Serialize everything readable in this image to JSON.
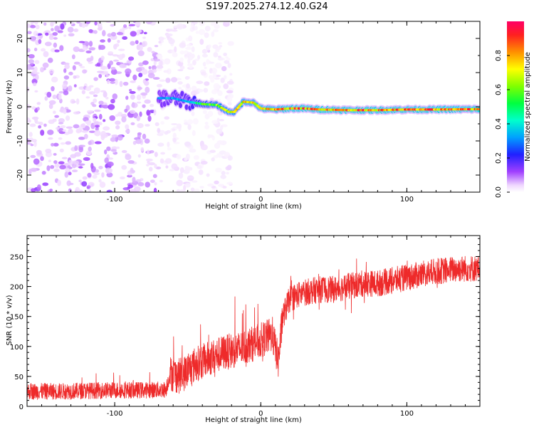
{
  "title": "S197.2025.274.12.40.G24",
  "colors": {
    "background": "#ffffff",
    "snr_line": "#ee2a2a",
    "axis": "#000000"
  },
  "chart_data": [
    {
      "type": "heatmap",
      "xlabel": "Height of straight line (km)",
      "ylabel": "Frequency (Hz)",
      "xlim": [
        -160,
        150
      ],
      "ylim": [
        -25,
        25
      ],
      "xticks": [
        -100,
        0,
        100
      ],
      "xtick_labels": [
        "-100",
        "0",
        "100"
      ],
      "yticks": [
        -20,
        -10,
        0,
        10,
        20
      ],
      "ytick_labels": [
        "-20",
        "-10",
        "0",
        "10",
        "20"
      ],
      "colorbar": {
        "label": "Normalized spectral amplitude",
        "range": [
          0,
          1
        ],
        "ticks": [
          0.0,
          0.2,
          0.4,
          0.6,
          0.8
        ],
        "tick_labels": [
          "0.0",
          "0.2",
          "0.4",
          "0.6",
          "0.8"
        ]
      },
      "noise_region_km": [
        -160,
        -45
      ],
      "signal_start_km": -70,
      "ridge": {
        "x": [
          -70,
          -60,
          -50,
          -40,
          -30,
          -22,
          -18,
          -12,
          -5,
          0,
          10,
          20,
          30,
          40,
          60,
          80,
          100,
          120,
          150
        ],
        "freq": [
          2.5,
          2.5,
          1.5,
          0.8,
          0.5,
          -1.5,
          -1.5,
          1.5,
          1.2,
          -0.5,
          -0.8,
          -0.5,
          -0.5,
          -0.8,
          -1.0,
          -1.0,
          -0.8,
          -0.8,
          -0.7
        ],
        "amplitude": [
          0.3,
          0.35,
          0.35,
          0.55,
          0.65,
          0.7,
          0.7,
          0.75,
          0.75,
          0.8,
          0.8,
          0.85,
          0.85,
          0.85,
          0.85,
          0.85,
          0.85,
          0.85,
          0.85
        ]
      }
    },
    {
      "type": "line",
      "xlabel": "Height of straight line (km)",
      "ylabel": "SNR (10 * v/v)",
      "xlim": [
        -160,
        150
      ],
      "ylim": [
        0,
        285
      ],
      "xticks": [
        -100,
        0,
        100
      ],
      "xtick_labels": [
        "-100",
        "0",
        "100"
      ],
      "yticks": [
        0,
        50,
        100,
        150,
        200,
        250
      ],
      "ytick_labels": [
        "0",
        "50",
        "100",
        "150",
        "200",
        "250"
      ],
      "series": [
        {
          "name": "SNR",
          "x": [
            -160,
            -140,
            -120,
            -100,
            -80,
            -65,
            -62,
            -55,
            -45,
            -35,
            -25,
            -15,
            -5,
            0,
            8,
            12,
            15,
            20,
            30,
            40,
            50,
            60,
            70,
            80,
            90,
            100,
            110,
            120,
            130,
            140,
            150
          ],
          "y": [
            25,
            25,
            26,
            27,
            27,
            28,
            55,
            50,
            70,
            80,
            90,
            95,
            105,
            110,
            120,
            75,
            150,
            180,
            190,
            195,
            195,
            200,
            205,
            205,
            210,
            215,
            220,
            225,
            228,
            230,
            230
          ]
        }
      ]
    }
  ]
}
